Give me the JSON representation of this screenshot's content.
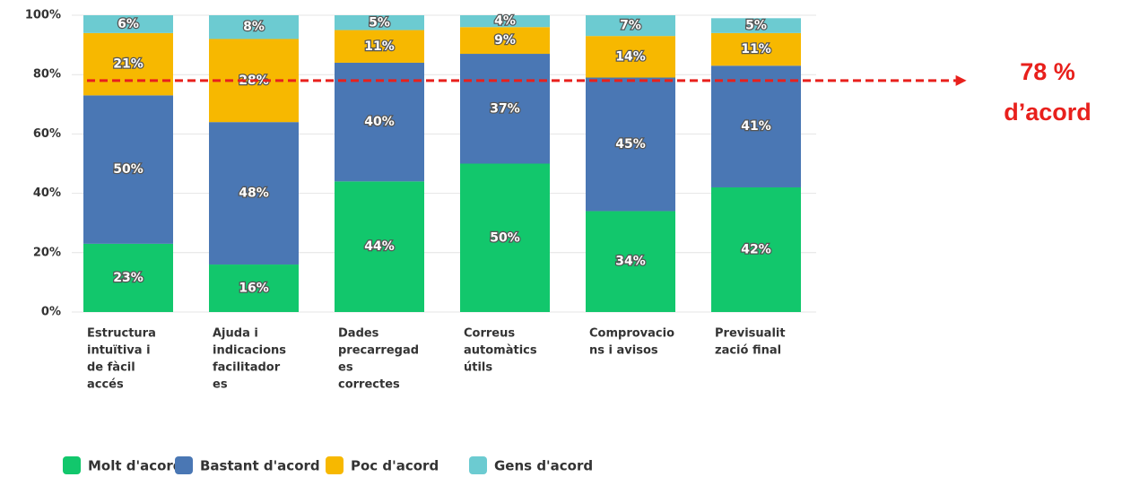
{
  "chart_data": {
    "type": "stacked_bar",
    "categories": [
      [
        "Estructura",
        "intuïtiva i",
        "de fàcil",
        "accés"
      ],
      [
        "Ajuda i",
        "indicacions",
        "facilitador",
        "es"
      ],
      [
        "Dades",
        "precarregad",
        "es",
        "correctes"
      ],
      [
        "Correus",
        "automàtics",
        "útils"
      ],
      [
        "Comprovacio",
        "ns i avisos"
      ],
      [
        "Previsualit",
        "zació final"
      ]
    ],
    "series": [
      {
        "name": "Molt d'acord",
        "color": "#12c76c",
        "values": [
          23,
          16,
          44,
          50,
          34,
          42
        ],
        "value_labels": [
          "23%",
          "16%",
          "44%",
          "50%",
          "34%",
          "42%"
        ]
      },
      {
        "name": "Bastant d'acord",
        "color": "#4a77b4",
        "values": [
          50,
          48,
          40,
          37,
          45,
          41
        ],
        "value_labels": [
          "50%",
          "48%",
          "40%",
          "37%",
          "45%",
          "41%"
        ]
      },
      {
        "name": "Poc d'acord",
        "color": "#f7b800",
        "values": [
          21,
          28,
          11,
          9,
          14,
          11
        ],
        "value_labels": [
          "21%",
          "28%",
          "11%",
          "9%",
          "14%",
          "11%"
        ]
      },
      {
        "name": "Gens d'acord",
        "color": "#6ccbd1",
        "values": [
          6,
          8,
          5,
          4,
          7,
          5
        ],
        "value_labels": [
          "6%",
          "8%",
          "5%",
          "4%",
          "7%",
          "5%"
        ]
      }
    ],
    "ylim": [
      0,
      100
    ],
    "yticks": [
      {
        "value": 0,
        "label": "0%"
      },
      {
        "value": 20,
        "label": "20%"
      },
      {
        "value": 40,
        "label": "40%"
      },
      {
        "value": 60,
        "label": "60%"
      },
      {
        "value": 80,
        "label": "80%"
      },
      {
        "value": 100,
        "label": "100%"
      }
    ],
    "grid": true,
    "annotation": {
      "value": 78,
      "text": [
        "78 %",
        "d’acord"
      ],
      "color": "#e8201c"
    }
  }
}
